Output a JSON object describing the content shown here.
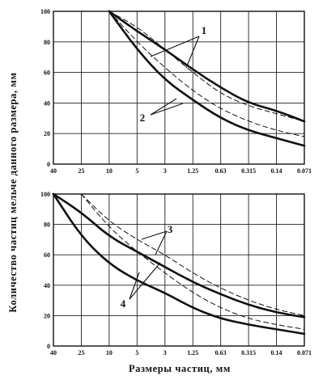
{
  "chart_data": {
    "shared_ylabel": "Количество частиц мельче данного размера, мм",
    "shared_xlabel": "Размеры частиц, мм",
    "panels": [
      {
        "type": "line",
        "x": [
          "40",
          "25",
          "10",
          "5",
          "3",
          "1.25",
          "0.63",
          "0.315",
          "0.14",
          "0.071"
        ],
        "ylim": [
          0,
          100
        ],
        "yticks": [
          0,
          20,
          40,
          60,
          80,
          100
        ],
        "grid": true,
        "markers": [
          "1",
          "2"
        ],
        "series": [
          {
            "style": "solid",
            "values": [
              null,
              null,
              100,
              87,
              75,
              62,
              50,
              40,
              35,
              28
            ]
          },
          {
            "style": "solid",
            "values": [
              null,
              null,
              100,
              75,
              55,
              42,
              30,
              22,
              17,
              12
            ]
          },
          {
            "style": "dashed",
            "values": [
              null,
              null,
              100,
              90,
              75,
              60,
              46,
              38,
              33,
              28
            ]
          },
          {
            "style": "dashed",
            "values": [
              null,
              null,
              100,
              80,
              63,
              48,
              36,
              28,
              22,
              18
            ]
          }
        ]
      },
      {
        "type": "line",
        "x": [
          "40",
          "25",
          "10",
          "5",
          "3",
          "1.25",
          "0.63",
          "0.315",
          "0.14",
          "0.071"
        ],
        "ylim": [
          0,
          100
        ],
        "yticks": [
          0,
          20,
          40,
          60,
          80,
          100
        ],
        "grid": true,
        "markers": [
          "3",
          "4"
        ],
        "series": [
          {
            "style": "solid",
            "values": [
              100,
              88,
              72,
              62,
              52,
              42,
              34,
              27,
              22,
              19
            ]
          },
          {
            "style": "solid",
            "values": [
              100,
              72,
              54,
              43,
              35,
              25,
              18,
              14,
              11,
              8
            ]
          },
          {
            "style": "dashed",
            "values": [
              null,
              100,
              82,
              70,
              60,
              48,
              38,
              30,
              24,
              20
            ]
          },
          {
            "style": "dashed",
            "values": [
              null,
              100,
              78,
              62,
              48,
              35,
              25,
              18,
              14,
              11
            ]
          }
        ]
      }
    ]
  }
}
